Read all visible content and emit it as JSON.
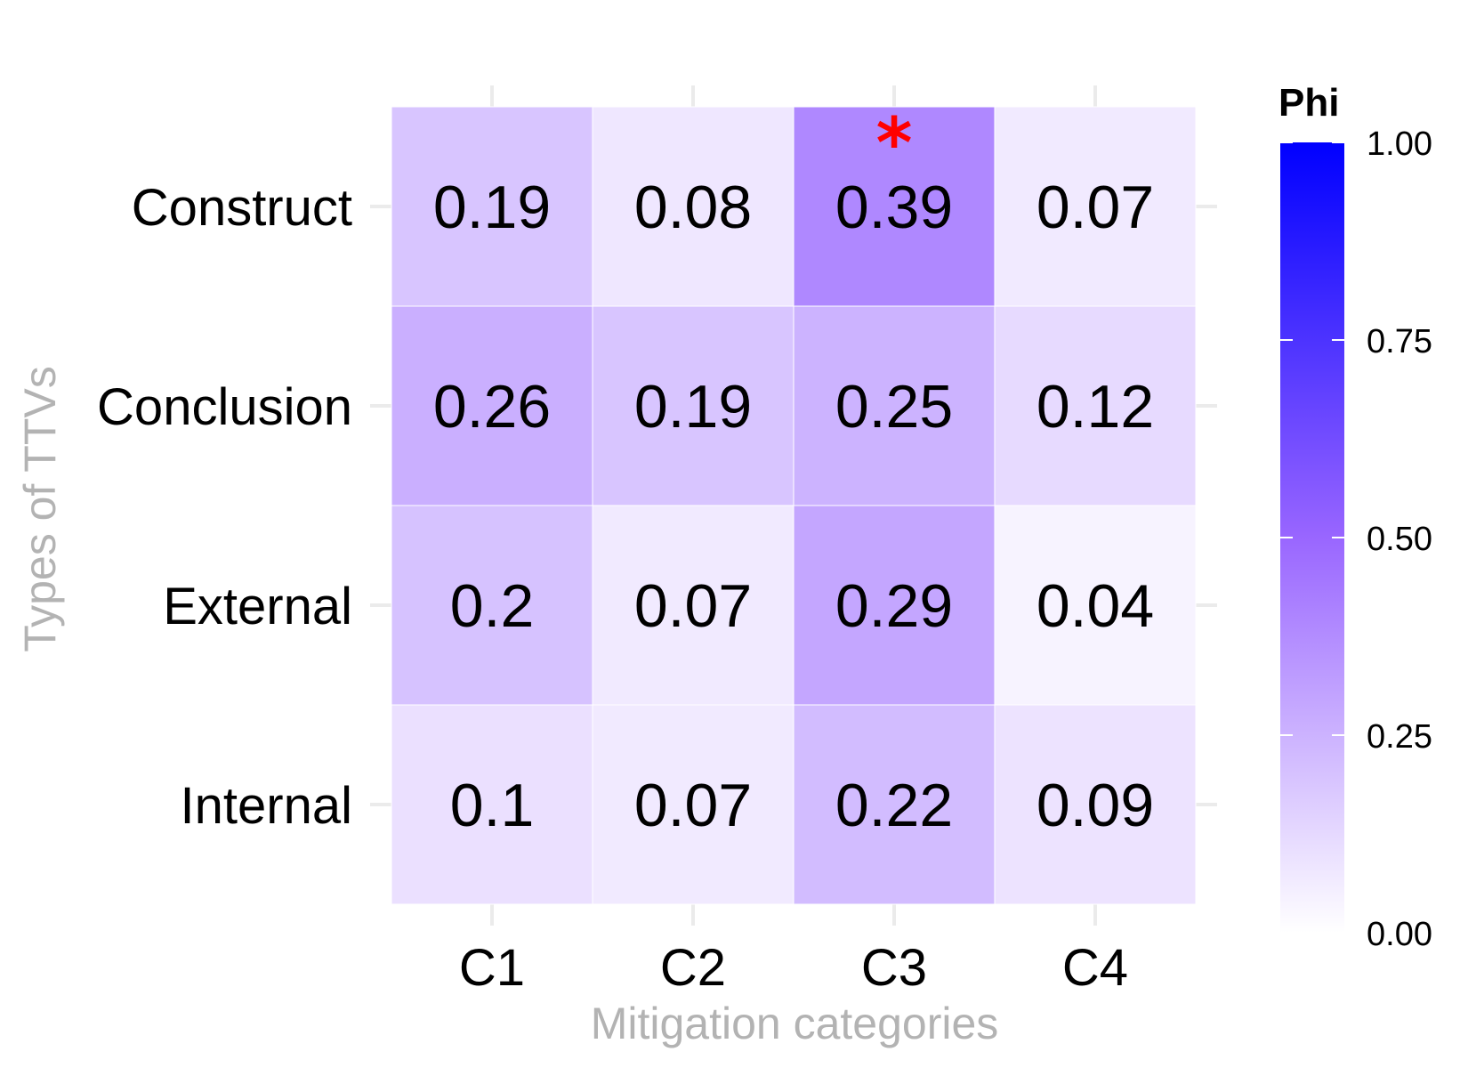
{
  "chart_data": {
    "type": "heatmap",
    "xlabel": "Mitigation categories",
    "ylabel": "Types of TTVs",
    "x_categories": [
      "C1",
      "C2",
      "C3",
      "C4"
    ],
    "y_categories": [
      "Construct",
      "Conclusion",
      "External",
      "Internal"
    ],
    "values": [
      [
        0.19,
        0.08,
        0.39,
        0.07
      ],
      [
        0.26,
        0.19,
        0.25,
        0.12
      ],
      [
        0.2,
        0.07,
        0.29,
        0.04
      ],
      [
        0.1,
        0.07,
        0.22,
        0.09
      ]
    ],
    "value_labels": [
      [
        "0.19",
        "0.08",
        "0.39",
        "0.07"
      ],
      [
        "0.26",
        "0.19",
        "0.25",
        "0.12"
      ],
      [
        "0.2",
        "0.07",
        "0.29",
        "0.04"
      ],
      [
        "0.1",
        "0.07",
        "0.22",
        "0.09"
      ]
    ],
    "annotations": [
      {
        "text": "*",
        "row": "Construct",
        "column": "C3",
        "color": "#ff0000"
      }
    ],
    "legend": {
      "title": "Phi",
      "range": [
        0,
        1
      ],
      "ticks": [
        0,
        0.25,
        0.5,
        0.75,
        1
      ],
      "tick_labels": [
        "0.00",
        "0.25",
        "0.50",
        "0.75",
        "1.00"
      ],
      "placement": "right"
    },
    "color_scale": {
      "low": "#ffffff",
      "mid": "#9966ff",
      "high": "#0000ff",
      "midpoint": 0.5
    },
    "grid": true
  }
}
